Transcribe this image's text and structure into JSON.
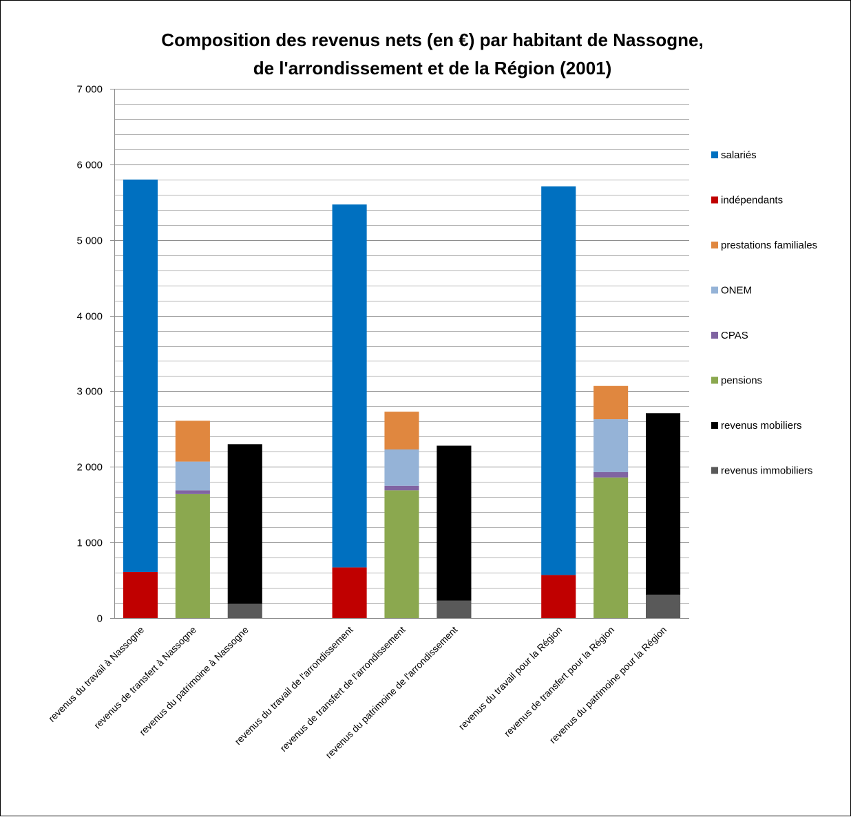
{
  "chart_data": {
    "type": "bar",
    "stacked": true,
    "title": [
      "Composition des revenus nets (en €) par habitant de Nassogne,",
      "de l'arrondissement  et de la Région (2001)"
    ],
    "xlabel": "",
    "ylabel": "",
    "ylim": [
      0,
      7000
    ],
    "y_major_step": 1000,
    "y_minor_step": 200,
    "y_tick_labels": [
      "0",
      "1 000",
      "2 000",
      "3 000",
      "4 000",
      "5 000",
      "6 000",
      "7 000"
    ],
    "grid": true,
    "legend_position": "right",
    "categories": [
      "revenus du travail à Nassogne",
      "revenus de transfert à Nassogne",
      "revenus du patrimoine à Nassogne",
      "",
      "revenus du travail de l'arrondissement",
      "revenus de transfert de l'arrondissement",
      "revenus du patrimoine  de l'arrondissement",
      "",
      "revenus du travail  pour la Région",
      "revenus de transfert pour la Région",
      "revenus du patrimoine pour la Région"
    ],
    "series": [
      {
        "name": "salariés",
        "color": "#0070C0",
        "values": [
          5190,
          0,
          0,
          0,
          4800,
          0,
          0,
          0,
          5140,
          0,
          0
        ]
      },
      {
        "name": "indépendants",
        "color": "#C00000",
        "values": [
          610,
          0,
          0,
          0,
          670,
          0,
          0,
          0,
          570,
          0,
          0
        ]
      },
      {
        "name": "prestations familiales",
        "color": "#E0873F",
        "values": [
          0,
          540,
          0,
          0,
          0,
          500,
          0,
          0,
          0,
          440,
          0
        ]
      },
      {
        "name": "ONEM",
        "color": "#95B3D7",
        "values": [
          0,
          380,
          0,
          0,
          0,
          480,
          0,
          0,
          0,
          700,
          0
        ]
      },
      {
        "name": "CPAS",
        "color": "#8064A2",
        "values": [
          0,
          50,
          0,
          0,
          0,
          60,
          0,
          0,
          0,
          70,
          0
        ]
      },
      {
        "name": "pensions",
        "color": "#8BA84F",
        "values": [
          0,
          1640,
          0,
          0,
          0,
          1690,
          0,
          0,
          0,
          1860,
          0
        ]
      },
      {
        "name": "revenus mobiliers",
        "color": "#000000",
        "values": [
          0,
          0,
          2110,
          0,
          0,
          0,
          2050,
          0,
          0,
          0,
          2400
        ]
      },
      {
        "name": "revenus immobiliers",
        "color": "#595959",
        "values": [
          0,
          0,
          190,
          0,
          0,
          0,
          230,
          0,
          0,
          0,
          310
        ]
      }
    ]
  }
}
